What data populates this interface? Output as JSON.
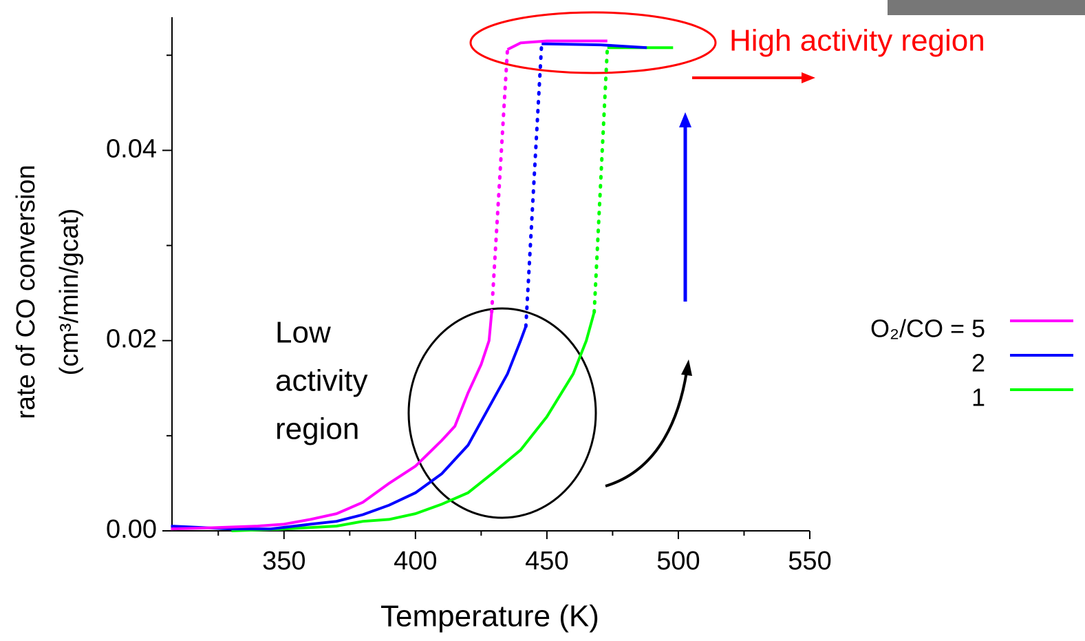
{
  "chart_data": {
    "type": "line",
    "x_label": "Temperature (K)",
    "y_label": [
      "rate of CO conversion",
      "(cm³/min/gcat)"
    ],
    "xlim": [
      307.4,
      550
    ],
    "ylim": [
      0,
      0.054
    ],
    "xticks": [
      350,
      400,
      450,
      500,
      550
    ],
    "xminor": [
      325,
      375,
      425,
      475,
      525
    ],
    "yticks": [
      {
        "value": 0,
        "label": "0.00"
      },
      {
        "value": 0.02,
        "label": "0.02"
      },
      {
        "value": 0.04,
        "label": "0.04"
      }
    ],
    "yminor": [
      0.01,
      0.03,
      0.05
    ],
    "annotations": {
      "high": "High activity region",
      "low": [
        "Low",
        "activity",
        "region"
      ]
    },
    "series": [
      {
        "name": "O₂/CO = 5",
        "color": "#ff00ff",
        "x": [
          307,
          320,
          340,
          350,
          360,
          370,
          380,
          390,
          400,
          410,
          415,
          420,
          425,
          428,
          429
        ],
        "values": [
          0.0002,
          0.0003,
          0.0005,
          0.0007,
          0.0012,
          0.0018,
          0.003,
          0.005,
          0.0068,
          0.0095,
          0.011,
          0.0145,
          0.0175,
          0.02,
          0.023
        ],
        "high_x": [
          435,
          440,
          450,
          473
        ],
        "high_values": [
          0.0506,
          0.0513,
          0.0515,
          0.0515
        ]
      },
      {
        "name": "2",
        "color": "#0000ff",
        "x": [
          307,
          330,
          345,
          360,
          370,
          380,
          390,
          400,
          410,
          420,
          430,
          435,
          440,
          442
        ],
        "values": [
          0.0005,
          0.0002,
          0.0002,
          0.0007,
          0.001,
          0.0017,
          0.0027,
          0.004,
          0.006,
          0.009,
          0.014,
          0.0165,
          0.02,
          0.0215
        ],
        "high_x": [
          448,
          470,
          488
        ],
        "high_values": [
          0.0512,
          0.0511,
          0.0508
        ]
      },
      {
        "name": "1",
        "color": "#00ff00",
        "x": [
          330,
          350,
          370,
          380,
          390,
          400,
          410,
          420,
          430,
          440,
          450,
          460,
          465,
          468
        ],
        "values": [
          0,
          0.0002,
          0.0005,
          0.001,
          0.0012,
          0.0018,
          0.0028,
          0.004,
          0.0062,
          0.0085,
          0.012,
          0.0165,
          0.02,
          0.023
        ],
        "high_x": [
          473,
          488,
          498
        ],
        "high_values": [
          0.0508,
          0.0508,
          0.0508
        ]
      }
    ]
  }
}
